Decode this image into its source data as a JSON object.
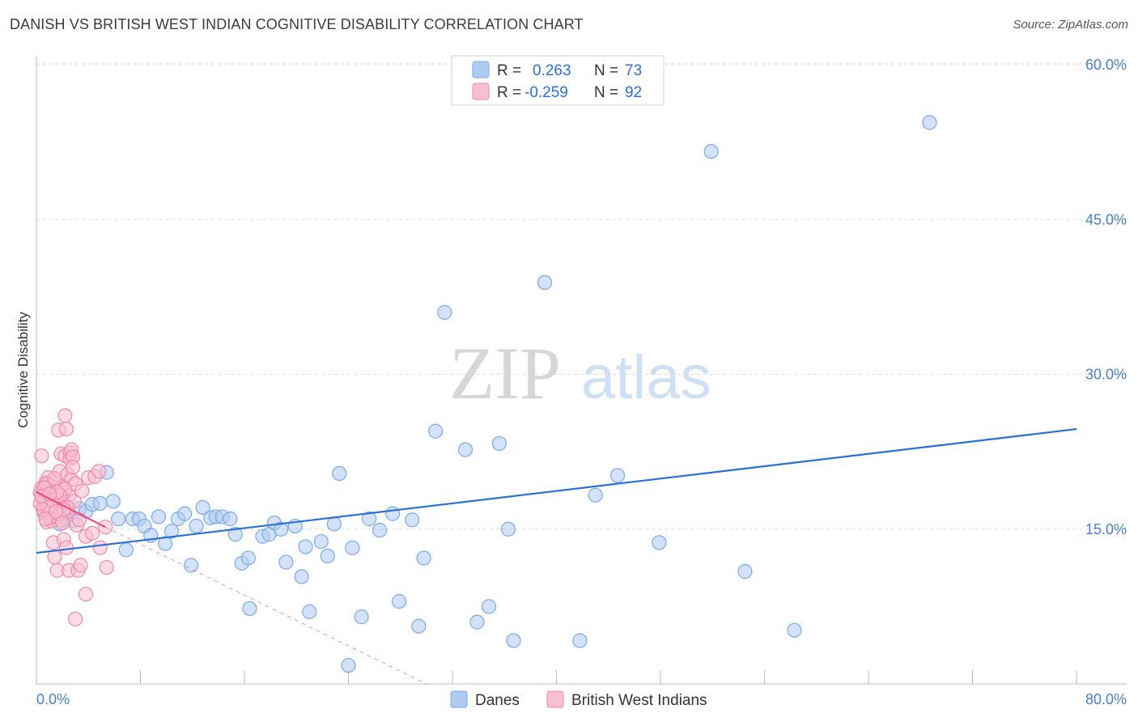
{
  "chart_data": {
    "type": "scatter",
    "title": "DANISH VS BRITISH WEST INDIAN COGNITIVE DISABILITY CORRELATION CHART",
    "source": "Source: ZipAtlas.com",
    "xlabel": "",
    "ylabel": "Cognitive Disability",
    "xlim": [
      0,
      80
    ],
    "ylim": [
      0,
      60
    ],
    "x_tick_labels": {
      "min": "0.0%",
      "max": "80.0%"
    },
    "y_ticks": [
      15,
      30,
      45,
      60
    ],
    "y_tick_labels": [
      "15.0%",
      "30.0%",
      "45.0%",
      "60.0%"
    ],
    "watermark": {
      "part1": "ZIP",
      "part2": "atlas"
    },
    "legend": {
      "r_label": "R =",
      "n_label": "N =",
      "entries": [
        {
          "r": "0.263",
          "n": "73"
        },
        {
          "r": "-0.259",
          "n": "92"
        }
      ]
    },
    "series": [
      {
        "name": "Danes",
        "color": "#7aaae8",
        "fill": "#aecbf2",
        "line_color": "#2a6fd4",
        "trend": {
          "x0": 0,
          "y0": 12.7,
          "x1": 80,
          "y1": 24.7,
          "dashed": false
        },
        "points": [
          [
            0.6,
            16.6
          ],
          [
            1.2,
            16.2
          ],
          [
            1.8,
            15.5
          ],
          [
            2.2,
            16.1
          ],
          [
            2.8,
            15.8
          ],
          [
            3.3,
            17.0
          ],
          [
            3.8,
            16.7
          ],
          [
            4.3,
            17.4
          ],
          [
            4.9,
            17.5
          ],
          [
            5.4,
            20.5
          ],
          [
            5.9,
            17.7
          ],
          [
            6.3,
            16.0
          ],
          [
            6.9,
            13.0
          ],
          [
            7.4,
            16.0
          ],
          [
            7.9,
            16.0
          ],
          [
            8.3,
            15.3
          ],
          [
            8.8,
            14.4
          ],
          [
            9.4,
            16.2
          ],
          [
            9.9,
            13.6
          ],
          [
            10.4,
            14.8
          ],
          [
            10.9,
            16.0
          ],
          [
            11.4,
            16.5
          ],
          [
            11.9,
            11.5
          ],
          [
            12.3,
            15.3
          ],
          [
            12.8,
            17.1
          ],
          [
            13.4,
            16.1
          ],
          [
            13.8,
            16.2
          ],
          [
            14.3,
            16.2
          ],
          [
            14.9,
            16.0
          ],
          [
            15.3,
            14.5
          ],
          [
            15.8,
            11.7
          ],
          [
            16.3,
            12.2
          ],
          [
            16.4,
            7.3
          ],
          [
            17.4,
            14.3
          ],
          [
            17.9,
            14.5
          ],
          [
            18.3,
            15.6
          ],
          [
            18.8,
            15.0
          ],
          [
            19.2,
            11.8
          ],
          [
            19.9,
            15.3
          ],
          [
            20.4,
            10.4
          ],
          [
            20.7,
            13.3
          ],
          [
            21.0,
            7.0
          ],
          [
            21.9,
            13.8
          ],
          [
            22.4,
            12.4
          ],
          [
            22.9,
            15.5
          ],
          [
            23.3,
            20.4
          ],
          [
            24.0,
            1.8
          ],
          [
            24.3,
            13.2
          ],
          [
            25.0,
            6.5
          ],
          [
            25.6,
            16.0
          ],
          [
            26.4,
            14.9
          ],
          [
            27.4,
            16.5
          ],
          [
            27.9,
            8.0
          ],
          [
            28.9,
            15.9
          ],
          [
            29.4,
            5.6
          ],
          [
            29.8,
            12.2
          ],
          [
            30.7,
            24.5
          ],
          [
            31.4,
            36.0
          ],
          [
            33.0,
            22.7
          ],
          [
            33.9,
            6.0
          ],
          [
            34.8,
            7.5
          ],
          [
            35.6,
            23.3
          ],
          [
            36.3,
            15.0
          ],
          [
            36.7,
            4.2
          ],
          [
            39.1,
            38.9
          ],
          [
            41.8,
            4.2
          ],
          [
            43.0,
            18.3
          ],
          [
            44.7,
            20.2
          ],
          [
            47.9,
            13.7
          ],
          [
            51.9,
            51.6
          ],
          [
            54.5,
            10.9
          ],
          [
            58.3,
            5.2
          ],
          [
            68.7,
            54.4
          ]
        ]
      },
      {
        "name": "British West Indians",
        "color": "#f08aaa",
        "fill": "#f7bfd0",
        "line_color": "#e8507e",
        "trend": {
          "x0": 0,
          "y0": 18.6,
          "x1": 5.3,
          "y1": 15.2,
          "dashed": false
        },
        "trend_extension": {
          "x0": 5.3,
          "y0": 15.2,
          "x1": 30,
          "y1": 0,
          "dashed": true
        },
        "points": [
          [
            0.3,
            18.5
          ],
          [
            0.4,
            19.0
          ],
          [
            0.5,
            18.0
          ],
          [
            0.5,
            17.2
          ],
          [
            0.6,
            18.8
          ],
          [
            0.6,
            16.8
          ],
          [
            0.7,
            19.5
          ],
          [
            0.7,
            18.3
          ],
          [
            0.8,
            17.6
          ],
          [
            0.8,
            15.7
          ],
          [
            0.9,
            18.9
          ],
          [
            0.9,
            20.0
          ],
          [
            1.0,
            17.4
          ],
          [
            1.0,
            18.6
          ],
          [
            1.1,
            16.4
          ],
          [
            1.1,
            19.2
          ],
          [
            1.2,
            18.1
          ],
          [
            1.2,
            15.8
          ],
          [
            1.3,
            17.9
          ],
          [
            1.3,
            13.7
          ],
          [
            1.4,
            12.3
          ],
          [
            1.4,
            18.7
          ],
          [
            1.5,
            19.6
          ],
          [
            1.5,
            17.0
          ],
          [
            1.6,
            16.2
          ],
          [
            1.6,
            11.0
          ],
          [
            1.7,
            18.4
          ],
          [
            1.7,
            24.6
          ],
          [
            1.8,
            20.6
          ],
          [
            1.8,
            17.3
          ],
          [
            1.9,
            22.3
          ],
          [
            1.9,
            15.9
          ],
          [
            2.0,
            18.0
          ],
          [
            2.0,
            19.1
          ],
          [
            2.1,
            14.0
          ],
          [
            2.1,
            17.5
          ],
          [
            2.2,
            26.0
          ],
          [
            2.2,
            22.1
          ],
          [
            2.3,
            24.7
          ],
          [
            2.3,
            13.2
          ],
          [
            2.4,
            20.3
          ],
          [
            2.4,
            16.7
          ],
          [
            2.5,
            18.2
          ],
          [
            2.5,
            11.0
          ],
          [
            2.6,
            22.4
          ],
          [
            2.6,
            21.8
          ],
          [
            2.7,
            22.7
          ],
          [
            2.7,
            19.8
          ],
          [
            2.8,
            22.0
          ],
          [
            2.8,
            21.0
          ],
          [
            2.9,
            17.7
          ],
          [
            3.0,
            19.4
          ],
          [
            3.1,
            15.4
          ],
          [
            3.2,
            11.0
          ],
          [
            3.3,
            15.9
          ],
          [
            3.4,
            11.5
          ],
          [
            3.5,
            18.7
          ],
          [
            3.8,
            14.3
          ],
          [
            3.8,
            8.7
          ],
          [
            4.0,
            20.0
          ],
          [
            4.3,
            14.6
          ],
          [
            4.5,
            20.1
          ],
          [
            4.8,
            20.6
          ],
          [
            4.9,
            13.2
          ],
          [
            5.3,
            15.2
          ],
          [
            5.4,
            11.3
          ],
          [
            3.0,
            6.3
          ],
          [
            0.4,
            22.1
          ],
          [
            1.0,
            16.1
          ],
          [
            1.9,
            19.1
          ],
          [
            0.6,
            17.8
          ],
          [
            1.3,
            18.2
          ],
          [
            0.8,
            19.4
          ],
          [
            1.5,
            18.0
          ],
          [
            2.2,
            18.9
          ],
          [
            0.5,
            16.9
          ],
          [
            1.1,
            17.2
          ],
          [
            1.7,
            16.5
          ],
          [
            2.0,
            15.6
          ],
          [
            0.9,
            17.1
          ],
          [
            1.4,
            19.9
          ],
          [
            0.3,
            17.5
          ],
          [
            0.7,
            16.0
          ],
          [
            1.8,
            18.3
          ],
          [
            2.4,
            17.1
          ],
          [
            0.6,
            19.0
          ],
          [
            1.2,
            17.8
          ],
          [
            1.6,
            18.6
          ],
          [
            2.1,
            16.9
          ],
          [
            0.4,
            18.2
          ],
          [
            1.0,
            18.4
          ],
          [
            1.5,
            16.7
          ]
        ]
      }
    ]
  }
}
